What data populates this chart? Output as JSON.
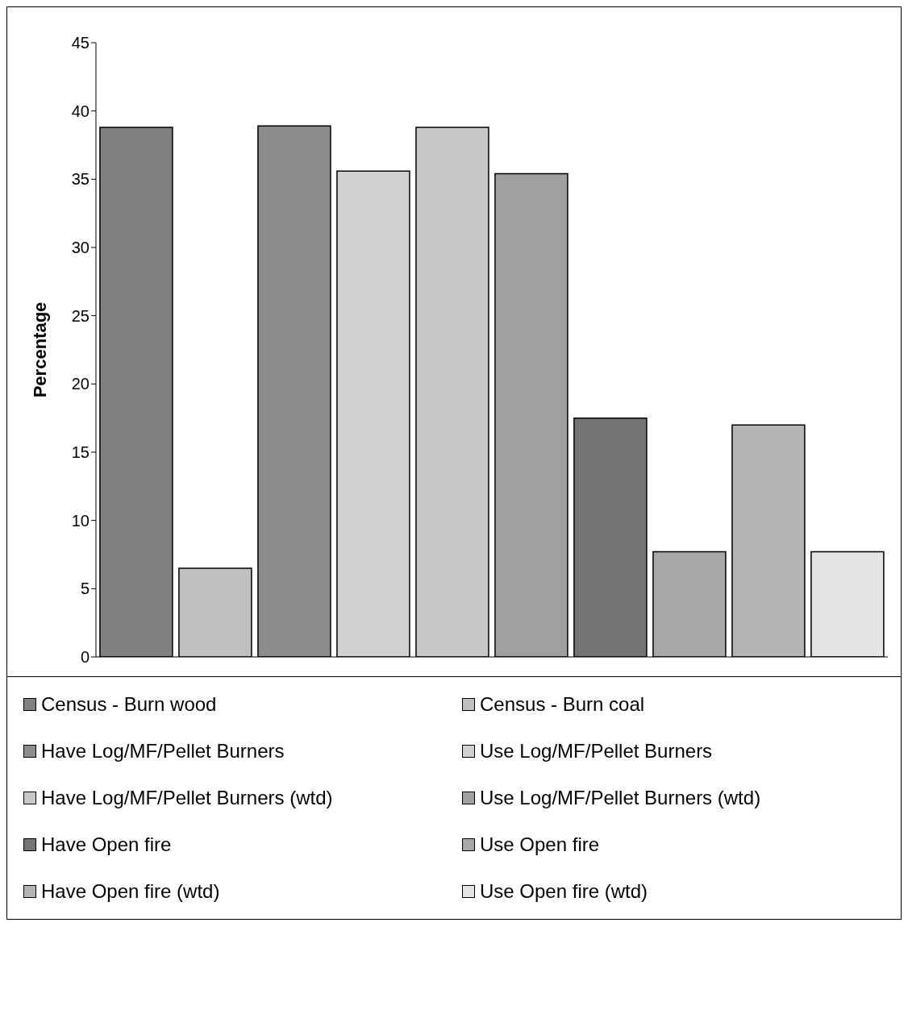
{
  "chart_data": {
    "type": "bar",
    "ylabel": "Percentage",
    "categories": [
      null
    ],
    "ylim": [
      0,
      45
    ],
    "yticks": [
      0,
      5,
      10,
      15,
      20,
      25,
      30,
      35,
      40,
      45
    ],
    "grid": false,
    "legend": "bottom",
    "series": [
      {
        "name": "Census - Burn wood",
        "color": "#808080",
        "values": [
          38.8
        ]
      },
      {
        "name": "Census - Burn coal",
        "color": "#c0c0c0",
        "values": [
          6.5
        ]
      },
      {
        "name": "Have Log/MF/Pellet Burners",
        "color": "#8c8c8c",
        "values": [
          38.9
        ]
      },
      {
        "name": "Use Log/MF/Pellet Burners",
        "color": "#d0d0d0",
        "values": [
          35.6
        ]
      },
      {
        "name": "Have Log/MF/Pellet Burners (wtd)",
        "color": "#c8c8c8",
        "values": [
          38.8
        ]
      },
      {
        "name": "Use Log/MF/Pellet Burners (wtd)",
        "color": "#a0a0a0",
        "values": [
          35.4
        ]
      },
      {
        "name": "Have Open fire",
        "color": "#747474",
        "values": [
          17.5
        ]
      },
      {
        "name": "Use Open fire",
        "color": "#a8a8a8",
        "values": [
          7.7
        ]
      },
      {
        "name": "Have Open fire (wtd)",
        "color": "#b4b4b4",
        "values": [
          17.0
        ]
      },
      {
        "name": "Use Open fire (wtd)",
        "color": "#e4e4e4",
        "values": [
          7.7
        ]
      }
    ]
  }
}
